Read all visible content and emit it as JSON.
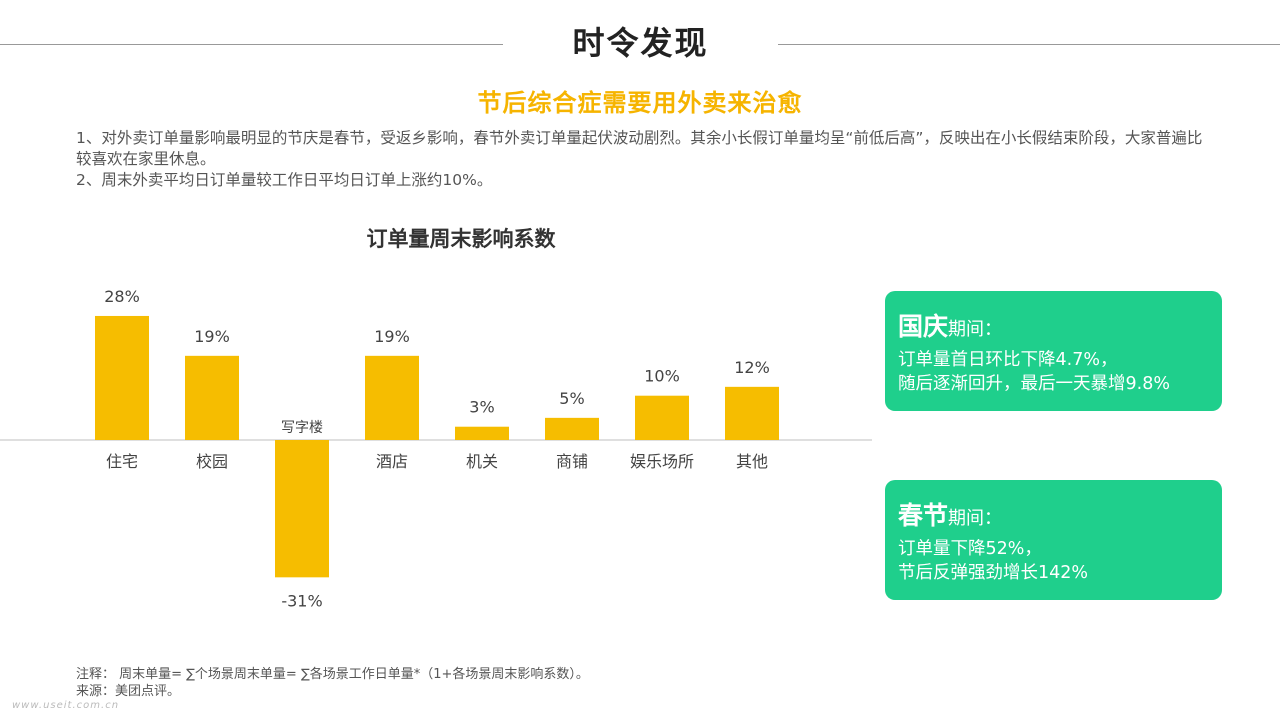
{
  "header": {
    "title": "时令发现"
  },
  "subtitle": "节后综合症需要用外卖来治愈",
  "notes": [
    "1、对外卖订单量影响最明显的节庆是春节，受返乡影响，春节外卖订单量起伏波动剧烈。其余小长假订单量均呈“前低后高”，反映出在小长假结束阶段，大家普遍比较喜欢在家里休息。",
    "2、周末外卖平均日订单量较工作日平均日订单上涨约10%。"
  ],
  "chart_data": {
    "type": "bar",
    "title": "订单量周末影响系数",
    "categories": [
      "住宅",
      "校园",
      "写字楼",
      "酒店",
      "机关",
      "商铺",
      "娱乐场所",
      "其他"
    ],
    "values": [
      28,
      19,
      -31,
      19,
      3,
      5,
      10,
      12
    ],
    "value_labels": [
      "28%",
      "19%",
      "-31%",
      "19%",
      "3%",
      "5%",
      "10%",
      "12%"
    ],
    "bar_color": "#f6bd00",
    "axis_color": "#bfbfbf",
    "grid": false,
    "legend": "none"
  },
  "cards": [
    {
      "name": "国庆",
      "suffix": "期间：",
      "lines": [
        "订单量首日环比下降4.7%，",
        "随后逐渐回升，最后一天暴增9.8%"
      ]
    },
    {
      "name": "春节",
      "suffix": "期间：",
      "lines": [
        "订单量下降52%，",
        "节后反弹强劲增长142%"
      ]
    }
  ],
  "colors": {
    "accent": "#f6b400",
    "card_bg": "#1fcf8c"
  },
  "footnote": {
    "note": "注释： 周末单量= ∑个场景周末单量= ∑各场景工作日单量*（1+各场景周末影响系数）。",
    "source": "来源：美团点评。"
  },
  "watermark": "www.useit.com.cn"
}
